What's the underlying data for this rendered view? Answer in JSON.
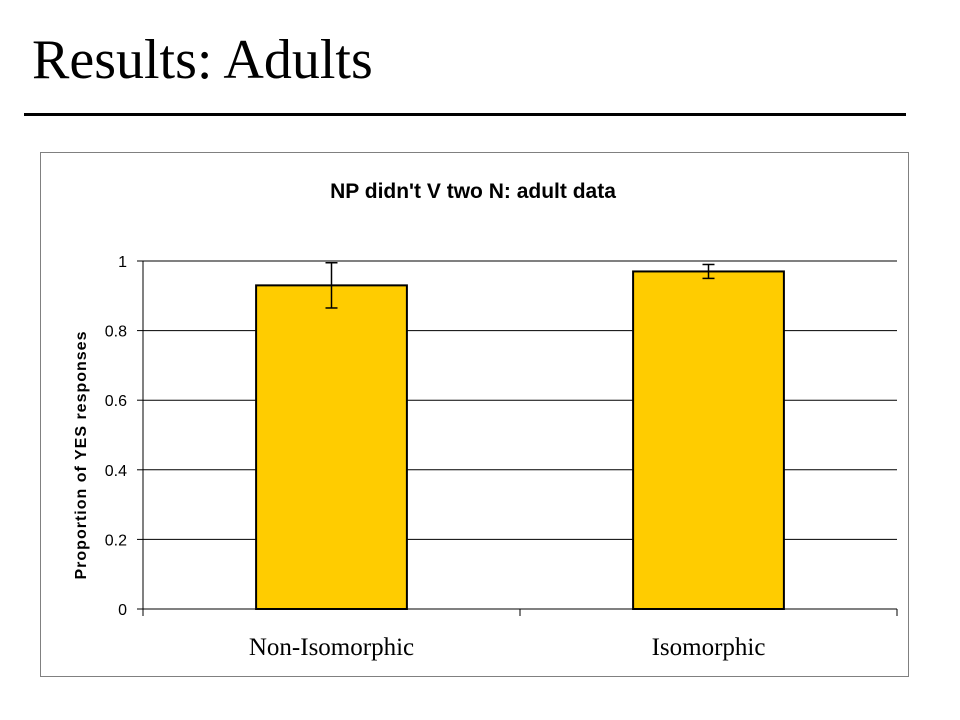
{
  "slide": {
    "title": "Results: Adults"
  },
  "chart_data": {
    "type": "bar",
    "title": "NP didn't V two N: adult data",
    "xlabel": "",
    "ylabel": "Proportion of YES responses",
    "categories": [
      "Non-Isomorphic",
      "Isomorphic"
    ],
    "series": [
      {
        "values": [
          0.93,
          0.97
        ],
        "error": [
          0.065,
          0.02
        ]
      }
    ],
    "ylim": [
      0,
      1
    ],
    "yticks": [
      "0",
      "0.2",
      "0.4",
      "0.6",
      "0.8",
      "1"
    ],
    "grid": true,
    "legend": "none",
    "bar_color": "#FFCC00",
    "bar_border_color": "#000000"
  }
}
